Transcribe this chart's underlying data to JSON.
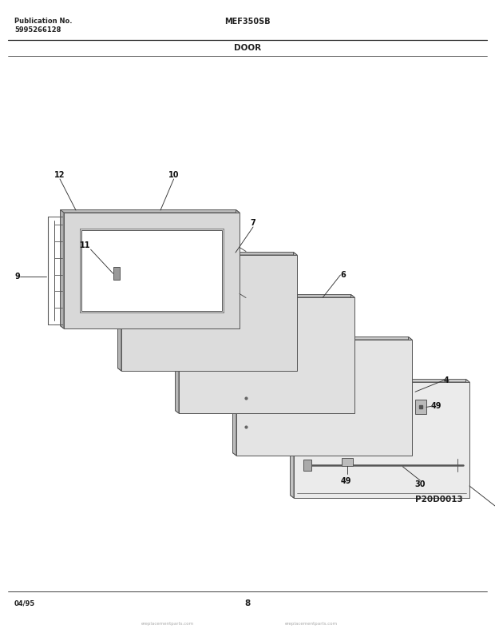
{
  "bg_color": "#ffffff",
  "title_model": "MEF350SB",
  "title_section": "DOOR",
  "pub_no_label": "Publication No.",
  "pub_no_value": "5995266128",
  "diagram_id": "P20D0013",
  "date_code": "04/95",
  "page_num": "8",
  "line_color": "#222222",
  "panel_edge": "#444444",
  "panel_face": "#e8e8e8",
  "panel_top": "#d0d0d0",
  "panel_side": "#c0c0c0",
  "watermark": "eReplacementParts.com",
  "watermark_color": "#cccccc",
  "header_line_lw": 1.0,
  "footer_line_lw": 0.7
}
